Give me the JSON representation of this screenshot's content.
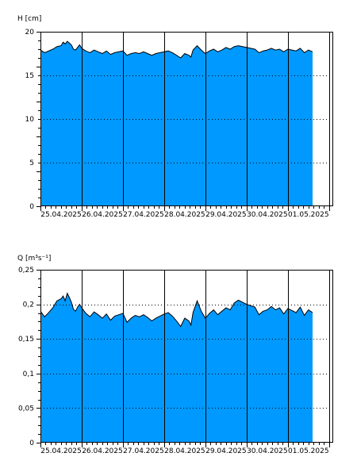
{
  "colors": {
    "fill": "#0099ff",
    "line": "#000000",
    "background": "#ffffff",
    "grid": "#000000"
  },
  "chart_data": [
    {
      "type": "area",
      "ylabel": "H [cm]",
      "ylim": [
        0,
        20
      ],
      "yticks": [
        "0",
        "5",
        "10",
        "15",
        "20"
      ],
      "ytick_values": [
        0,
        5,
        10,
        15,
        20
      ],
      "x_range_days": [
        0,
        7.1
      ],
      "day_labels": [
        "25.04.2025",
        "26.04.2025",
        "27.04.2025",
        "28.04.2025",
        "29.04.2025",
        "30.04.2025",
        "01.05.2025"
      ],
      "grid": "horizontal dotted, vertical solid at midnight",
      "series": [
        {
          "x": [
            0.0,
            0.1,
            0.2,
            0.3,
            0.4,
            0.5,
            0.55,
            0.6,
            0.65,
            0.7,
            0.75,
            0.8,
            0.85,
            0.9,
            0.95,
            1.0,
            1.1,
            1.2,
            1.3,
            1.4,
            1.5,
            1.6,
            1.7,
            1.8,
            1.9,
            2.0,
            2.1,
            2.2,
            2.3,
            2.4,
            2.5,
            2.6,
            2.7,
            2.8,
            2.9,
            3.0,
            3.1,
            3.2,
            3.3,
            3.4,
            3.5,
            3.6,
            3.65,
            3.7,
            3.8,
            3.9,
            4.0,
            4.1,
            4.2,
            4.3,
            4.4,
            4.5,
            4.6,
            4.7,
            4.8,
            4.9,
            5.0,
            5.1,
            5.2,
            5.3,
            5.4,
            5.5,
            5.6,
            5.7,
            5.8,
            5.9,
            6.0,
            6.1,
            6.2,
            6.3,
            6.4,
            6.5,
            6.6
          ],
          "y": [
            17.9,
            17.6,
            17.8,
            18.0,
            18.3,
            18.4,
            18.8,
            18.6,
            18.9,
            18.7,
            18.5,
            18.0,
            17.9,
            18.2,
            18.5,
            18.1,
            17.8,
            17.6,
            17.9,
            17.7,
            17.5,
            17.8,
            17.4,
            17.6,
            17.7,
            17.8,
            17.3,
            17.5,
            17.6,
            17.5,
            17.7,
            17.5,
            17.3,
            17.5,
            17.6,
            17.7,
            17.8,
            17.6,
            17.3,
            17.0,
            17.5,
            17.3,
            17.1,
            17.9,
            18.4,
            17.9,
            17.5,
            17.8,
            18.0,
            17.7,
            17.9,
            18.2,
            18.0,
            18.3,
            18.4,
            18.3,
            18.2,
            18.1,
            18.0,
            17.6,
            17.8,
            17.9,
            18.1,
            17.9,
            18.0,
            17.7,
            18.0,
            17.9,
            17.8,
            18.1,
            17.6,
            17.9,
            17.7
          ]
        }
      ]
    },
    {
      "type": "area",
      "ylabel": "Q [m³s⁻¹]",
      "ylim": [
        0,
        0.25
      ],
      "yticks": [
        "0",
        "0,05",
        "0,1",
        "0,15",
        "0,2",
        "0,25"
      ],
      "ytick_values": [
        0,
        0.05,
        0.1,
        0.15,
        0.2,
        0.25
      ],
      "x_range_days": [
        0,
        7.1
      ],
      "day_labels": [
        "25.04.2025",
        "26.04.2025",
        "27.04.2025",
        "28.04.2025",
        "29.04.2025",
        "30.04.2025",
        "01.05.2025"
      ],
      "grid": "horizontal dotted, vertical solid at midnight",
      "series": [
        {
          "x": [
            0.0,
            0.1,
            0.2,
            0.3,
            0.4,
            0.5,
            0.55,
            0.6,
            0.65,
            0.7,
            0.75,
            0.8,
            0.85,
            0.9,
            0.95,
            1.0,
            1.1,
            1.2,
            1.3,
            1.4,
            1.5,
            1.6,
            1.7,
            1.8,
            1.9,
            2.0,
            2.1,
            2.2,
            2.3,
            2.4,
            2.5,
            2.6,
            2.7,
            2.8,
            2.9,
            3.0,
            3.1,
            3.2,
            3.3,
            3.4,
            3.5,
            3.6,
            3.65,
            3.7,
            3.8,
            3.9,
            4.0,
            4.1,
            4.2,
            4.3,
            4.4,
            4.5,
            4.6,
            4.7,
            4.8,
            4.9,
            5.0,
            5.1,
            5.2,
            5.3,
            5.4,
            5.5,
            5.6,
            5.7,
            5.8,
            5.9,
            6.0,
            6.1,
            6.2,
            6.3,
            6.4,
            6.5,
            6.6
          ],
          "y": [
            0.19,
            0.182,
            0.188,
            0.195,
            0.205,
            0.208,
            0.212,
            0.205,
            0.216,
            0.21,
            0.203,
            0.193,
            0.19,
            0.196,
            0.2,
            0.195,
            0.187,
            0.182,
            0.189,
            0.185,
            0.18,
            0.186,
            0.177,
            0.183,
            0.185,
            0.187,
            0.174,
            0.18,
            0.184,
            0.182,
            0.185,
            0.181,
            0.176,
            0.18,
            0.183,
            0.186,
            0.188,
            0.183,
            0.176,
            0.168,
            0.18,
            0.176,
            0.17,
            0.188,
            0.205,
            0.19,
            0.18,
            0.187,
            0.192,
            0.185,
            0.19,
            0.195,
            0.192,
            0.202,
            0.206,
            0.203,
            0.2,
            0.198,
            0.196,
            0.185,
            0.19,
            0.192,
            0.197,
            0.192,
            0.195,
            0.186,
            0.194,
            0.191,
            0.188,
            0.196,
            0.184,
            0.192,
            0.188
          ]
        }
      ]
    }
  ]
}
